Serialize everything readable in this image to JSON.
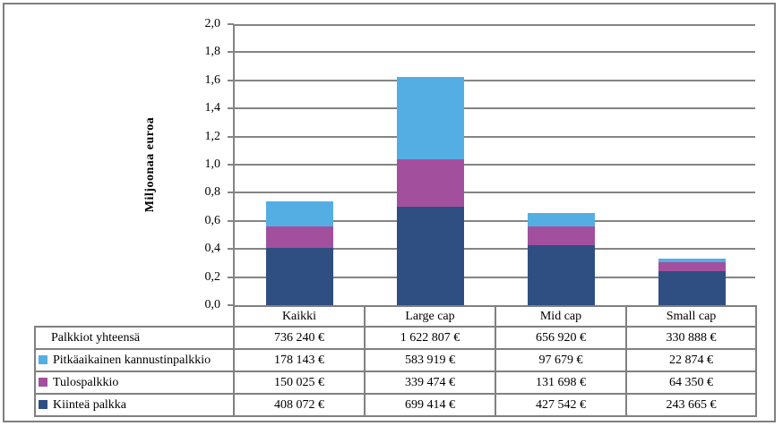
{
  "window": {
    "background": "#ffffff",
    "frame_border_color": "#7f7f7f"
  },
  "chart_data": {
    "type": "bar",
    "stacked": true,
    "ylabel": "Miljoonaa euroa",
    "ylim": [
      0,
      2.0
    ],
    "ytick_step": 0.2,
    "ytick_labels": [
      "0,0",
      "0,2",
      "0,4",
      "0,6",
      "0,8",
      "1,0",
      "1,2",
      "1,4",
      "1,6",
      "1,8",
      "2,0"
    ],
    "grid": true,
    "gridline_color": "#848484",
    "legend_position": "table-row-labels",
    "categories": [
      "Kaikki",
      "Large cap",
      "Mid cap",
      "Small cap"
    ],
    "series": [
      {
        "name": "Kiinteä palkka",
        "color": "#2F4E82",
        "values": [
          0.408072,
          0.699414,
          0.427542,
          0.243665
        ]
      },
      {
        "name": "Tulospalkkio",
        "color": "#A2509D",
        "values": [
          0.150025,
          0.339474,
          0.131698,
          0.06435
        ]
      },
      {
        "name": "Pitkäaikainen kannustinpalkkio",
        "color": "#54AEE3",
        "values": [
          0.178143,
          0.583919,
          0.097679,
          0.022874
        ]
      }
    ],
    "totals": [
      0.73624,
      1.622807,
      0.65692,
      0.330888
    ]
  },
  "table": {
    "border_color": "#808080",
    "columns": [
      "Kaikki",
      "Large cap",
      "Mid cap",
      "Small cap"
    ],
    "rows": [
      {
        "label": "Palkkiot yhteensä",
        "swatch": null,
        "values": [
          "736 240 €",
          "1 622 807 €",
          "656 920 €",
          "330 888 €"
        ]
      },
      {
        "label": "Pitkäaikainen kannustinpalkkio",
        "swatch": "#54AEE3",
        "values": [
          "178 143 €",
          "583 919 €",
          "97 679 €",
          "22 874 €"
        ]
      },
      {
        "label": "Tulospalkkio",
        "swatch": "#A2509D",
        "values": [
          "150 025 €",
          "339 474 €",
          "131 698 €",
          "64 350 €"
        ]
      },
      {
        "label": "Kiinteä palkka",
        "swatch": "#2F4E82",
        "values": [
          "408 072 €",
          "699 414 €",
          "427 542 €",
          "243 665 €"
        ]
      }
    ]
  }
}
